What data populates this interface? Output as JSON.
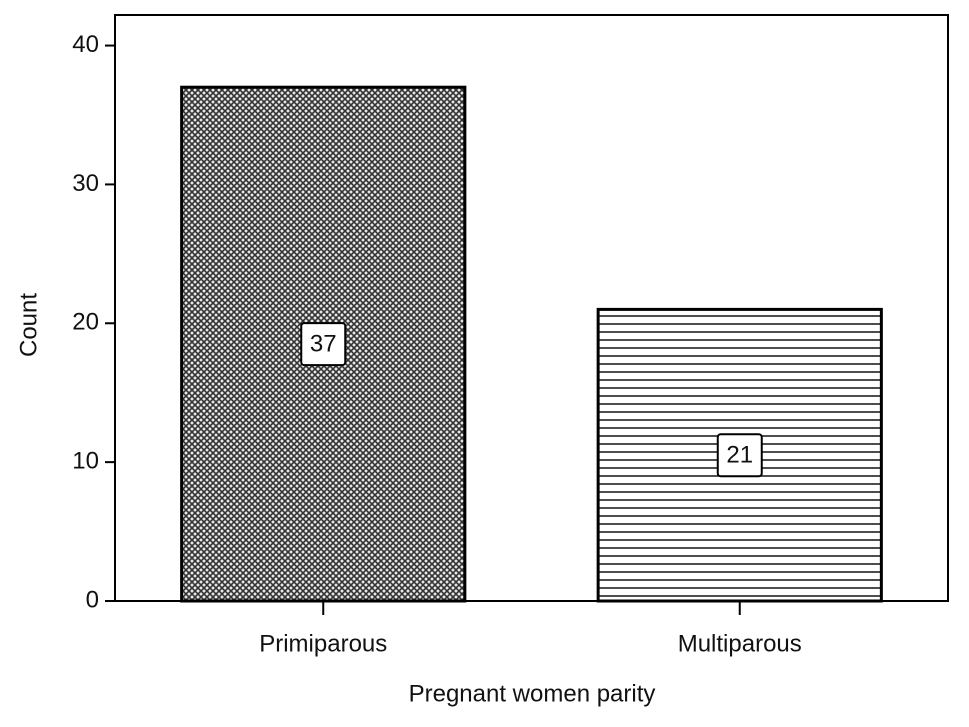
{
  "chart_data": {
    "type": "bar",
    "categories": [
      "Primiparous",
      "Multiparous"
    ],
    "values": [
      37,
      21
    ],
    "xlabel": "Pregnant women parity",
    "ylabel": "Count",
    "ylim": [
      0,
      42.2
    ],
    "yticks": [
      0,
      10,
      20,
      30,
      40
    ]
  }
}
